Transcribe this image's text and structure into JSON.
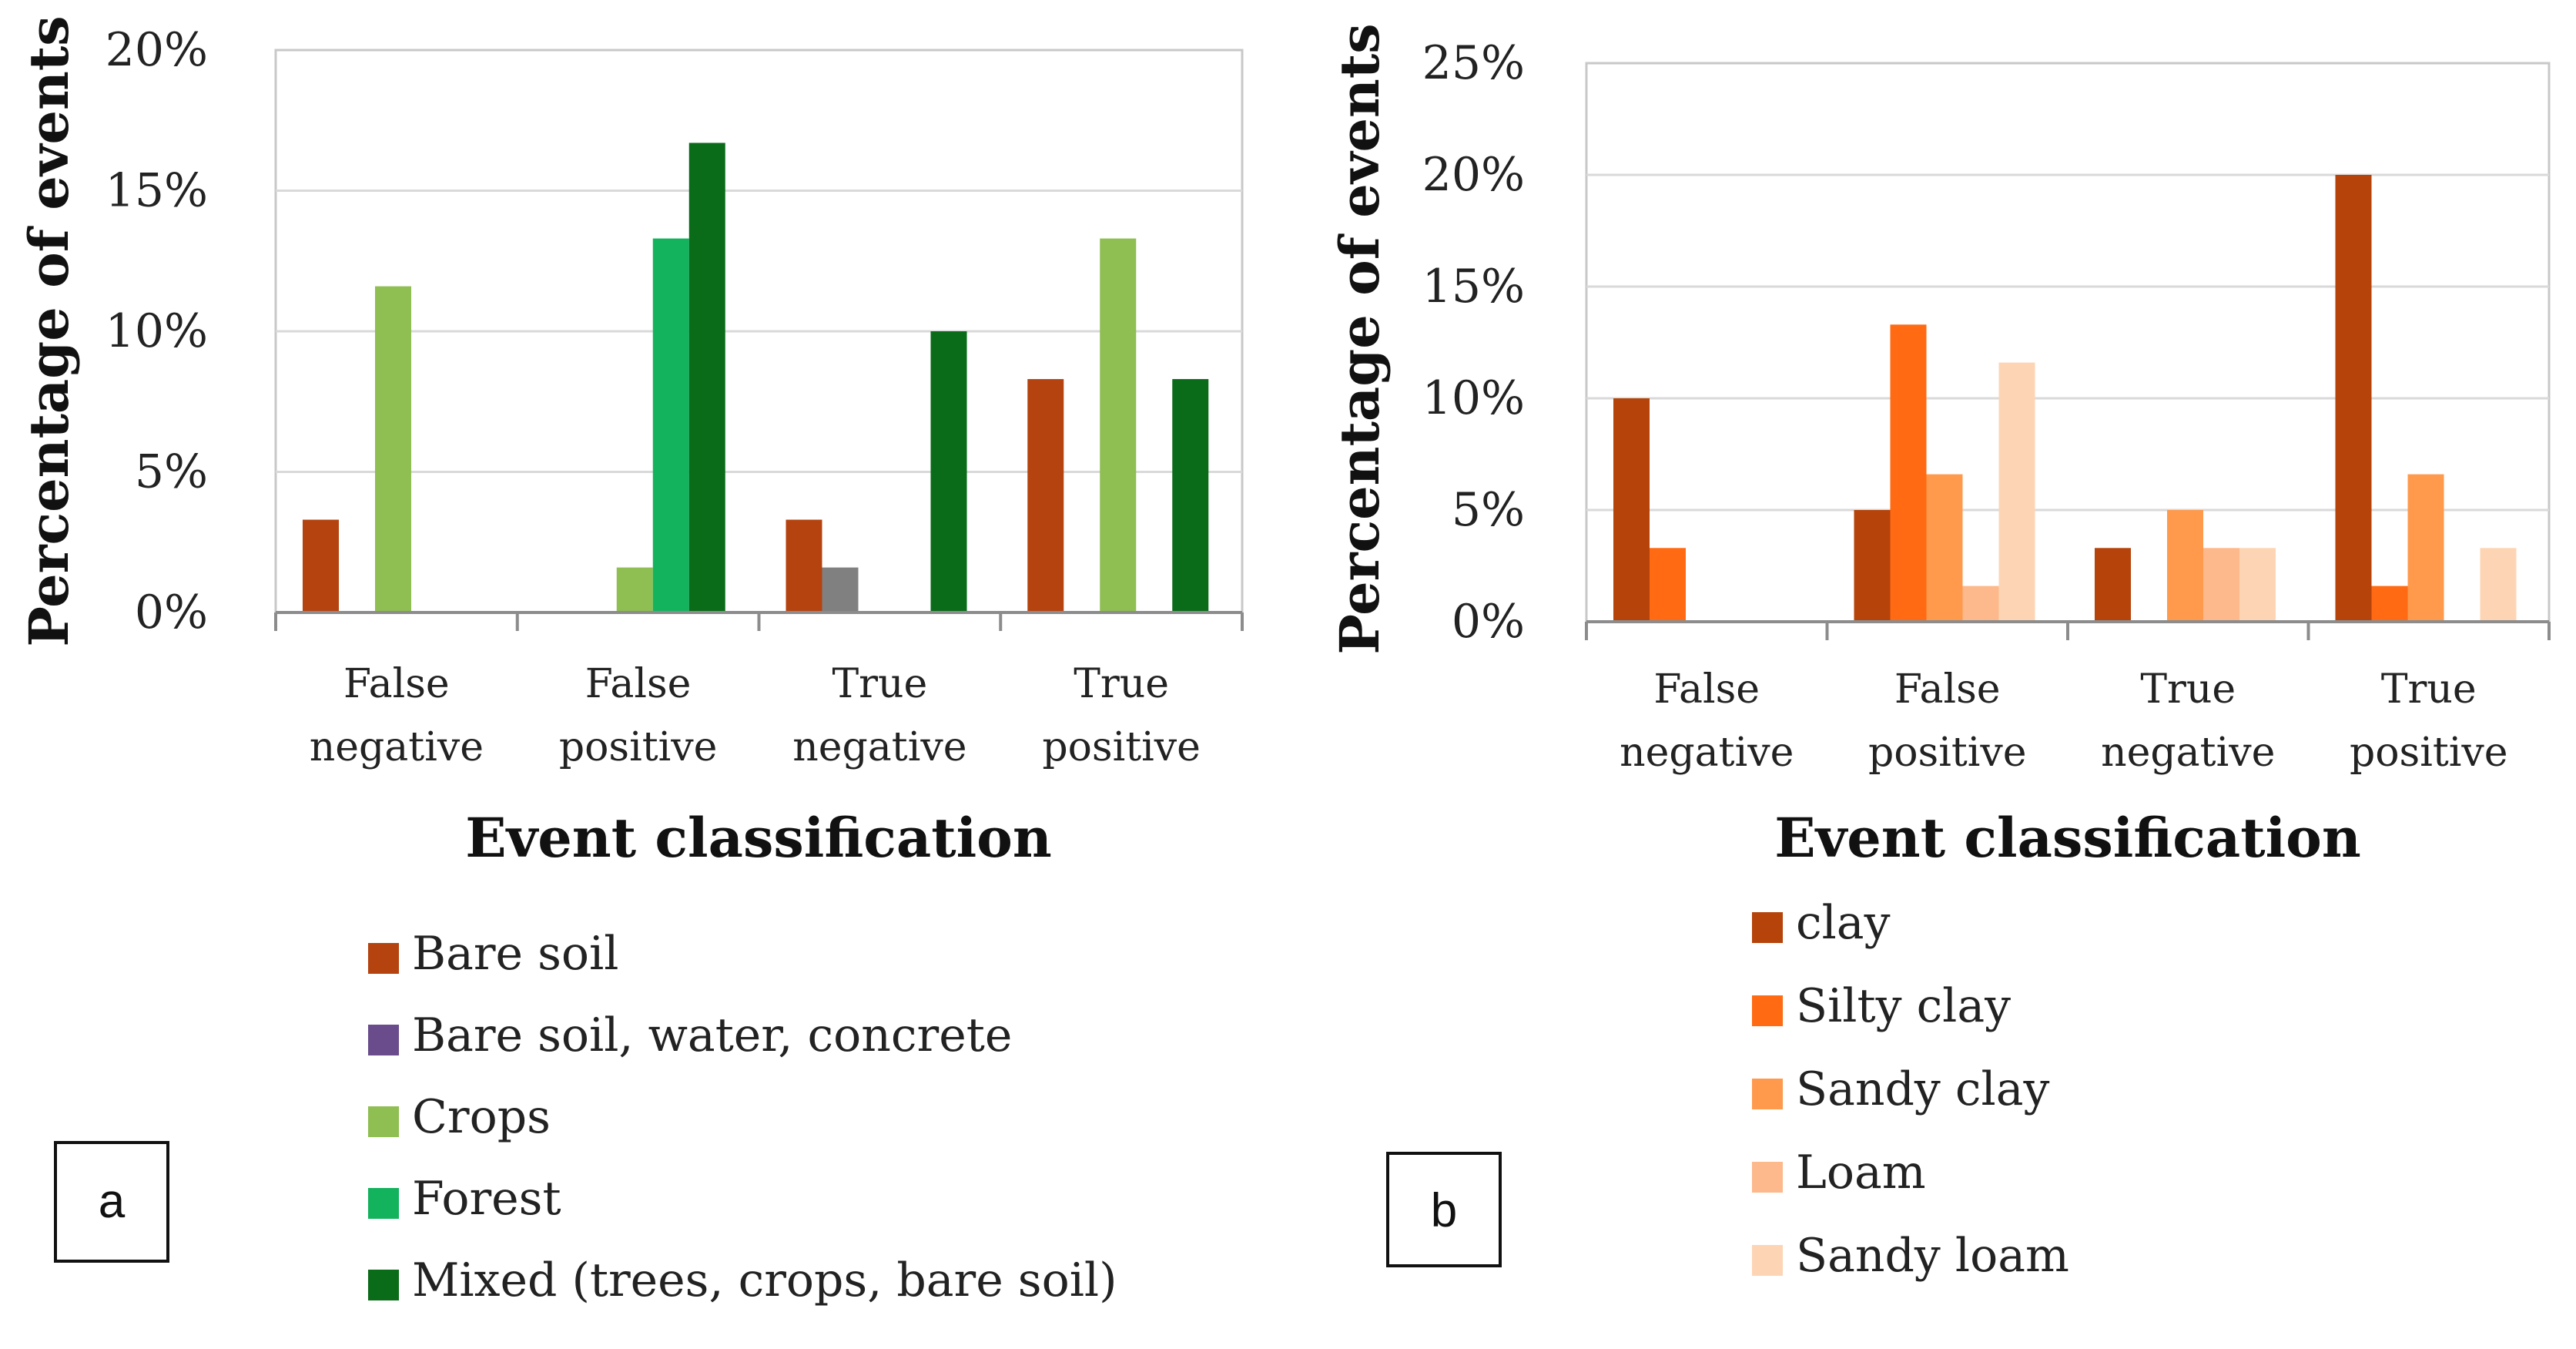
{
  "chart_data": [
    {
      "type": "bar",
      "panel_label": "a",
      "title": "",
      "xlabel": "Event classification",
      "ylabel": "Percentage of events",
      "ylim": [
        0,
        20
      ],
      "yticks": [
        "0%",
        "5%",
        "10%",
        "15%",
        "20%"
      ],
      "categories": [
        "False negative",
        "False positive",
        "True negative",
        "True positive"
      ],
      "category_lines": [
        [
          "False",
          "negative"
        ],
        [
          "False",
          "positive"
        ],
        [
          "True",
          "negative"
        ],
        [
          "True",
          "positive"
        ]
      ],
      "grid": true,
      "legend_position": "bottom",
      "series": [
        {
          "name": "Bare soil",
          "color": "#B5430F",
          "values": [
            3.3,
            0,
            3.3,
            8.3
          ]
        },
        {
          "name": "Bare soil, water, concrete",
          "color": "#6A4C8C",
          "values": [
            0,
            0,
            1.6,
            0
          ]
        },
        {
          "name": "Crops",
          "color": "#8FBE52",
          "values": [
            11.6,
            1.6,
            0,
            13.3
          ]
        },
        {
          "name": "Forest",
          "color": "#13B35E",
          "values": [
            0,
            13.3,
            0,
            0
          ]
        },
        {
          "name": "Mixed (trees, crops, bare soil)",
          "color": "#0A6B18",
          "values": [
            0,
            16.7,
            10,
            8.3
          ]
        }
      ],
      "special_colors": {
        "Bare soil, water, concrete|True negative": "#808080"
      }
    },
    {
      "type": "bar",
      "panel_label": "b",
      "title": "",
      "xlabel": "Event classification",
      "ylabel": "Percentage of events",
      "ylim": [
        0,
        25
      ],
      "yticks": [
        "0%",
        "5%",
        "10%",
        "15%",
        "20%",
        "25%"
      ],
      "categories": [
        "False negative",
        "False positive",
        "True negative",
        "True positive"
      ],
      "category_lines": [
        [
          "False",
          "negative"
        ],
        [
          "False",
          "positive"
        ],
        [
          "True",
          "negative"
        ],
        [
          "True",
          "positive"
        ]
      ],
      "grid": true,
      "legend_position": "bottom",
      "series": [
        {
          "name": "clay",
          "color": "#B5430A",
          "values": [
            10,
            5,
            3.3,
            20
          ]
        },
        {
          "name": "Silty clay",
          "color": "#FF6A12",
          "values": [
            3.3,
            13.3,
            0,
            1.6
          ]
        },
        {
          "name": "Sandy clay",
          "color": "#FF9A4D",
          "values": [
            0,
            6.6,
            5,
            6.6
          ]
        },
        {
          "name": "Loam",
          "color": "#FDB98C",
          "values": [
            0,
            1.6,
            3.3,
            0
          ]
        },
        {
          "name": "Sandy loam",
          "color": "#FDD5B4",
          "values": [
            0,
            11.6,
            3.3,
            3.3
          ]
        }
      ]
    }
  ]
}
